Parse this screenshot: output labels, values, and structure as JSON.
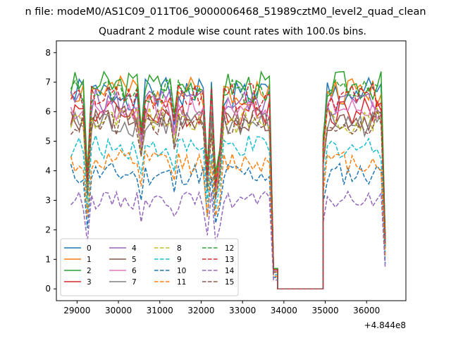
{
  "figure": {
    "suptitle": "n file: modeM0/AS1C09_011T06_9000006468_51989cztM0_level2_quad_clean",
    "offset_label": "+4.844e8"
  },
  "chart_data": {
    "type": "line",
    "title": "Quadrant 2 module wise count rates with 100.0s bins.",
    "xlabel": "",
    "ylabel": "",
    "x_offset": 484400000,
    "xlim": [
      28500,
      36950
    ],
    "ylim": [
      -0.4,
      8.4
    ],
    "xticks": [
      29000,
      30000,
      31000,
      32000,
      33000,
      34000,
      35000,
      36000
    ],
    "yticks": [
      0,
      1,
      2,
      3,
      4,
      5,
      6,
      7,
      8
    ],
    "grid": false,
    "legend_position": "lower-left",
    "legend_columns": 4,
    "segments": [
      {
        "start": 28850,
        "step": 100,
        "count": 51
      },
      {
        "start": 33850,
        "step": 100,
        "count": 12
      },
      {
        "start": 34950,
        "step": 100,
        "count": 16
      }
    ],
    "series": [
      {
        "name": "0",
        "color": "#1f77b4",
        "dash": "solid",
        "level": 6.6,
        "amp": 0.55,
        "seed": 1
      },
      {
        "name": "1",
        "color": "#ff7f0e",
        "dash": "solid",
        "level": 6.7,
        "amp": 0.5,
        "seed": 2
      },
      {
        "name": "2",
        "color": "#2ca02c",
        "dash": "solid",
        "level": 6.9,
        "amp": 0.5,
        "seed": 3
      },
      {
        "name": "3",
        "color": "#d62728",
        "dash": "solid",
        "level": 6.0,
        "amp": 0.5,
        "seed": 4
      },
      {
        "name": "4",
        "color": "#9467bd",
        "dash": "solid",
        "level": 6.3,
        "amp": 0.5,
        "seed": 5
      },
      {
        "name": "5",
        "color": "#8c564b",
        "dash": "solid",
        "level": 5.8,
        "amp": 0.45,
        "seed": 6
      },
      {
        "name": "6",
        "color": "#e377c2",
        "dash": "solid",
        "level": 6.1,
        "amp": 0.45,
        "seed": 7
      },
      {
        "name": "7",
        "color": "#7f7f7f",
        "dash": "solid",
        "level": 5.6,
        "amp": 0.45,
        "seed": 8
      },
      {
        "name": "8",
        "color": "#bcbd22",
        "dash": "dashed",
        "level": 5.7,
        "amp": 0.45,
        "seed": 9
      },
      {
        "name": "9",
        "color": "#17becf",
        "dash": "dashed",
        "level": 4.8,
        "amp": 0.4,
        "seed": 10
      },
      {
        "name": "10",
        "color": "#1f77b4",
        "dash": "dashed",
        "level": 3.9,
        "amp": 0.4,
        "seed": 11
      },
      {
        "name": "11",
        "color": "#ff7f0e",
        "dash": "dashed",
        "level": 4.3,
        "amp": 0.4,
        "seed": 12
      },
      {
        "name": "12",
        "color": "#2ca02c",
        "dash": "dashed",
        "level": 6.7,
        "amp": 0.45,
        "seed": 13
      },
      {
        "name": "13",
        "color": "#d62728",
        "dash": "dashed",
        "level": 6.5,
        "amp": 0.45,
        "seed": 14
      },
      {
        "name": "14",
        "color": "#9467bd",
        "dash": "dashed",
        "level": 3.0,
        "amp": 0.3,
        "seed": 15
      },
      {
        "name": "15",
        "color": "#8c564b",
        "dash": "dashed",
        "level": 5.6,
        "amp": 0.45,
        "seed": 16
      }
    ]
  }
}
